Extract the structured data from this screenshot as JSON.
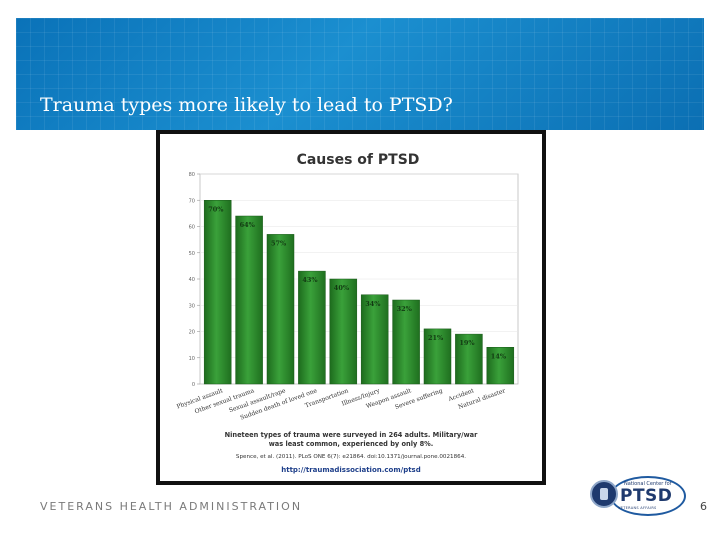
{
  "slide": {
    "title": "Trauma types more likely to lead to PTSD?",
    "footer": "VETERANS HEALTH ADMINISTRATION",
    "page_number": "6",
    "logo_small": "National Center for",
    "logo_big": "PTSD",
    "logo_tag": "VETERANS AFFAIRS",
    "banner_color": "#1380c4"
  },
  "chart_data": {
    "type": "bar",
    "title": "Causes of PTSD",
    "categories": [
      "Physical assault",
      "Other sexual trauma",
      "Sexual assault/rape",
      "Sudden death of loved one",
      "Transportation",
      "Illness/Injury",
      "Weapon assault",
      "Severe suffering",
      "Accident",
      "Natural disaster"
    ],
    "values": [
      70,
      64,
      57,
      43,
      40,
      34,
      32,
      21,
      19,
      14
    ],
    "value_labels": [
      "70%",
      "64%",
      "57%",
      "43%",
      "40%",
      "34%",
      "32%",
      "21%",
      "19%",
      "14%"
    ],
    "yticks": [
      0,
      10,
      20,
      30,
      40,
      50,
      60,
      70,
      80
    ],
    "ylim": [
      0,
      80
    ],
    "xlabel": "",
    "ylabel": "",
    "bar_color": "#2f8a2f",
    "caption": [
      "Nineteen types of trauma were surveyed in 264 adults. Military/war",
      "was least common, experienced by only 8%."
    ],
    "citation": "Spence, et al. (2011). PLoS ONE 6(7): e21864. doi:10.1371/journal.pone.0021864.",
    "url": "http://traumadissociation.com/ptsd"
  }
}
